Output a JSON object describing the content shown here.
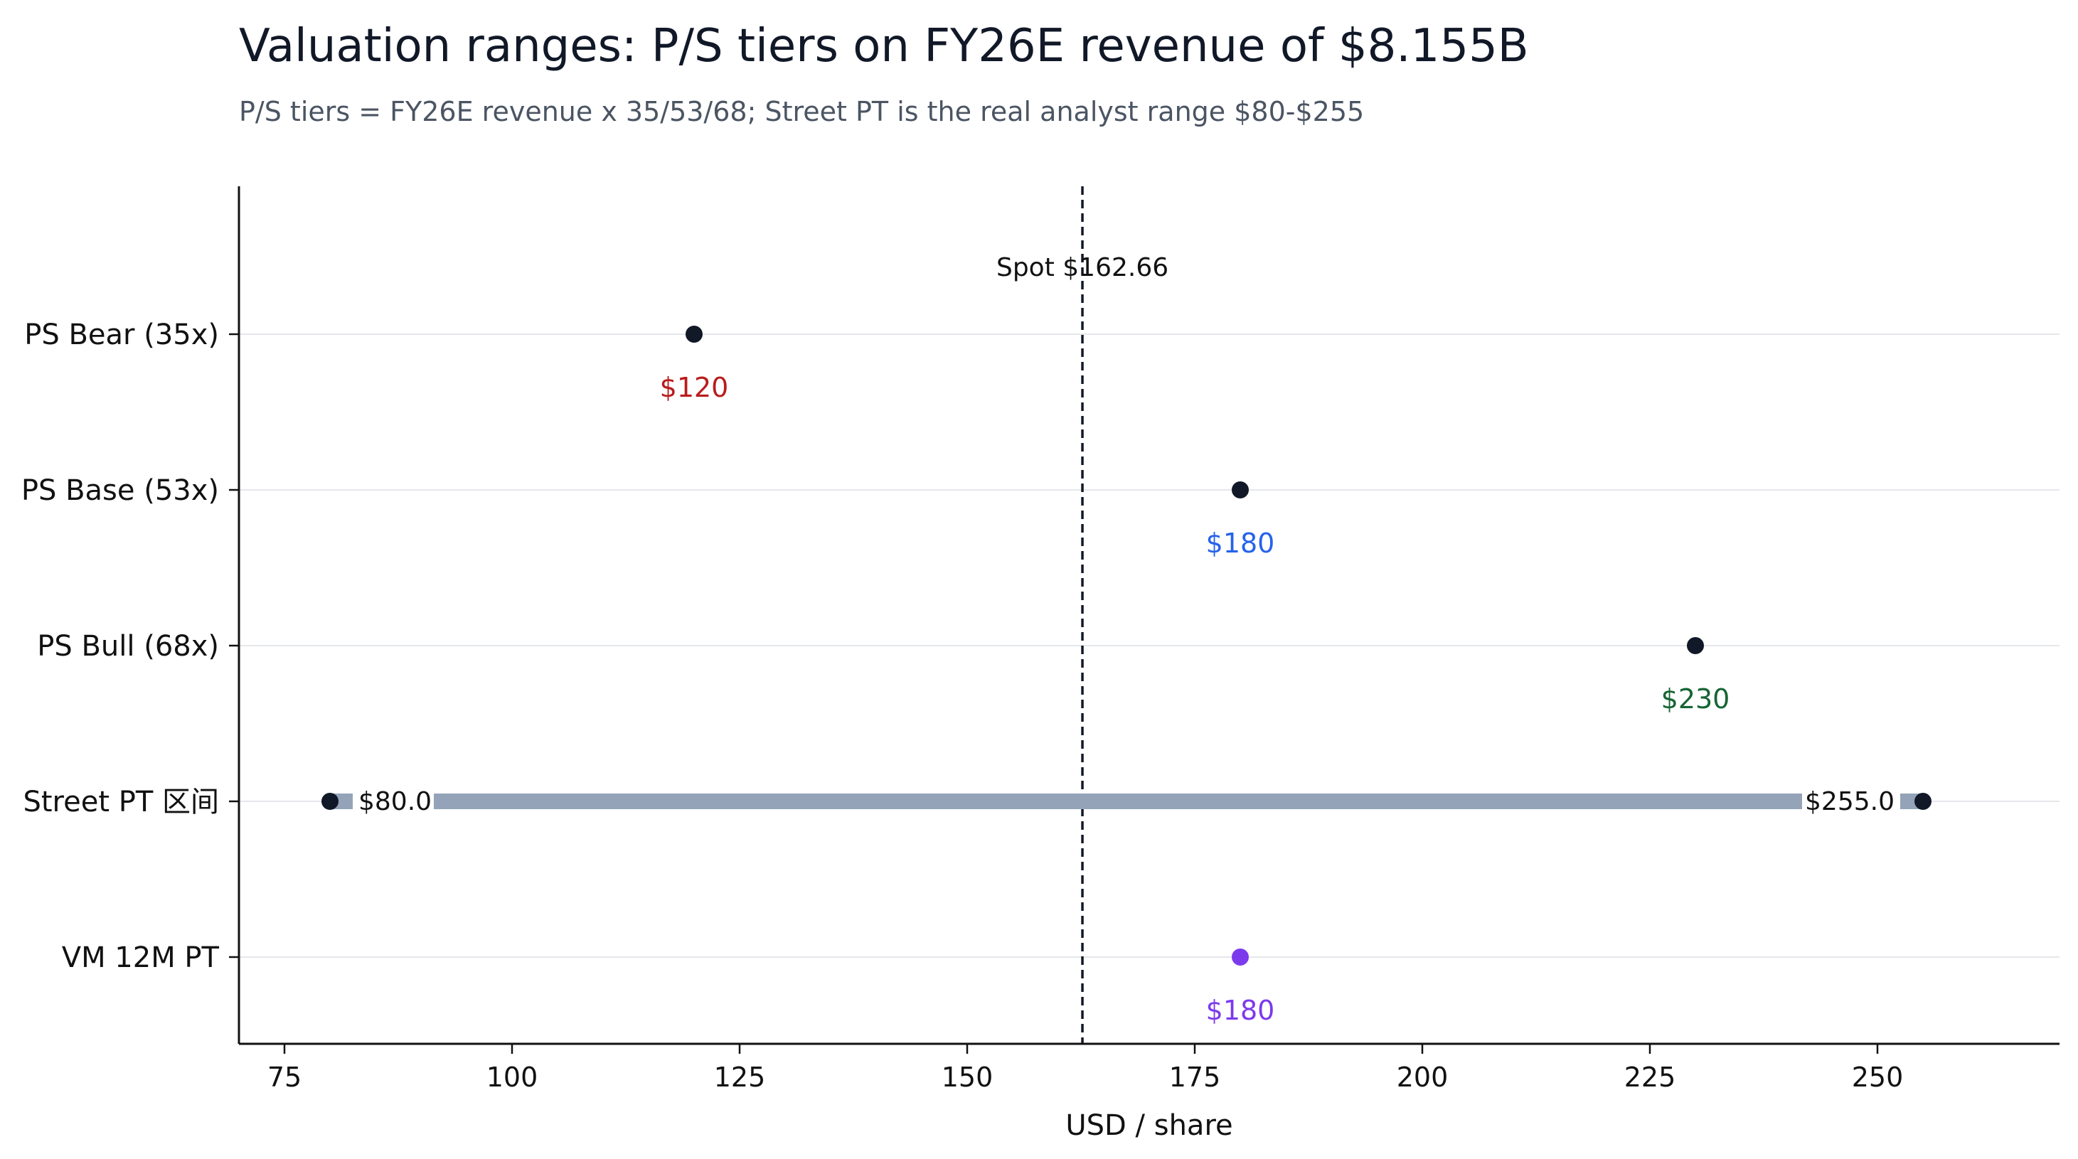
{
  "chart_data": {
    "type": "dot-range",
    "title": "Valuation ranges: P/S tiers on FY26E revenue of $8.155B",
    "subtitle": "P/S tiers = FY26E revenue x 35/53/68; Street PT is the real analyst range $80-$255",
    "xlabel": "USD / share",
    "ylabel": "",
    "xlim": [
      70,
      270
    ],
    "xticks": [
      75,
      100,
      125,
      150,
      175,
      200,
      225,
      250
    ],
    "grid": "horizontal",
    "reference_line": {
      "value": 162.66,
      "label": "Spot $162.66",
      "style": "dashed",
      "color": "#111827"
    },
    "rows": [
      {
        "category": "PS Bear (35x)",
        "kind": "point",
        "value": 120,
        "label": "$120",
        "point_color": "#111827",
        "label_color": "#b91c1c"
      },
      {
        "category": "PS Base (53x)",
        "kind": "point",
        "value": 180,
        "label": "$180",
        "point_color": "#111827",
        "label_color": "#2563eb"
      },
      {
        "category": "PS Bull (68x)",
        "kind": "point",
        "value": 230,
        "label": "$230",
        "point_color": "#111827",
        "label_color": "#166534"
      },
      {
        "category": "Street PT 区间",
        "kind": "range",
        "low": 80,
        "high": 255,
        "low_label": "$80.0",
        "high_label": "$255.0",
        "point_color": "#111827",
        "bar_color": "#94a3b8"
      },
      {
        "category": "VM 12M PT",
        "kind": "point",
        "value": 180,
        "label": "$180",
        "point_color": "#7c3aed",
        "label_color": "#7c3aed"
      }
    ]
  }
}
